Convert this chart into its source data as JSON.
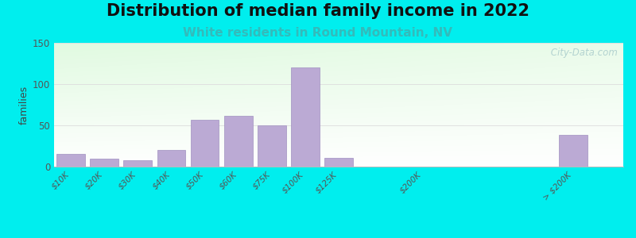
{
  "title": "Distribution of median family income in 2022",
  "subtitle": "White residents in Round Mountain, NV",
  "ylabel": "families",
  "background_outer": "#00EEEE",
  "bar_color": "#bbaad4",
  "bar_edge_color": "#a090c0",
  "categories": [
    "$10K",
    "$20K",
    "$30K",
    "$40K",
    "$50K",
    "$60K",
    "$75K",
    "$100K",
    "$125K",
    "$200K",
    "> $200K"
  ],
  "values": [
    15,
    10,
    8,
    20,
    57,
    62,
    50,
    120,
    11,
    0,
    38
  ],
  "x_positions": [
    0,
    1,
    2,
    3,
    4,
    5,
    6,
    7,
    8,
    10.5,
    15.0
  ],
  "bar_width": 0.85,
  "xlim": [
    -0.5,
    16.5
  ],
  "ylim": [
    0,
    150
  ],
  "yticks": [
    0,
    50,
    100,
    150
  ],
  "title_fontsize": 15,
  "subtitle_fontsize": 11,
  "subtitle_color": "#33bbbb",
  "title_color": "#111111",
  "watermark": " City-Data.com",
  "watermark_color": "#aacccc",
  "grid_color": "#dddddd",
  "tick_label_color": "#555555",
  "ylabel_color": "#444444",
  "grad_top_color": "#d8edd8",
  "grad_bottom_color": "#f8fff8"
}
